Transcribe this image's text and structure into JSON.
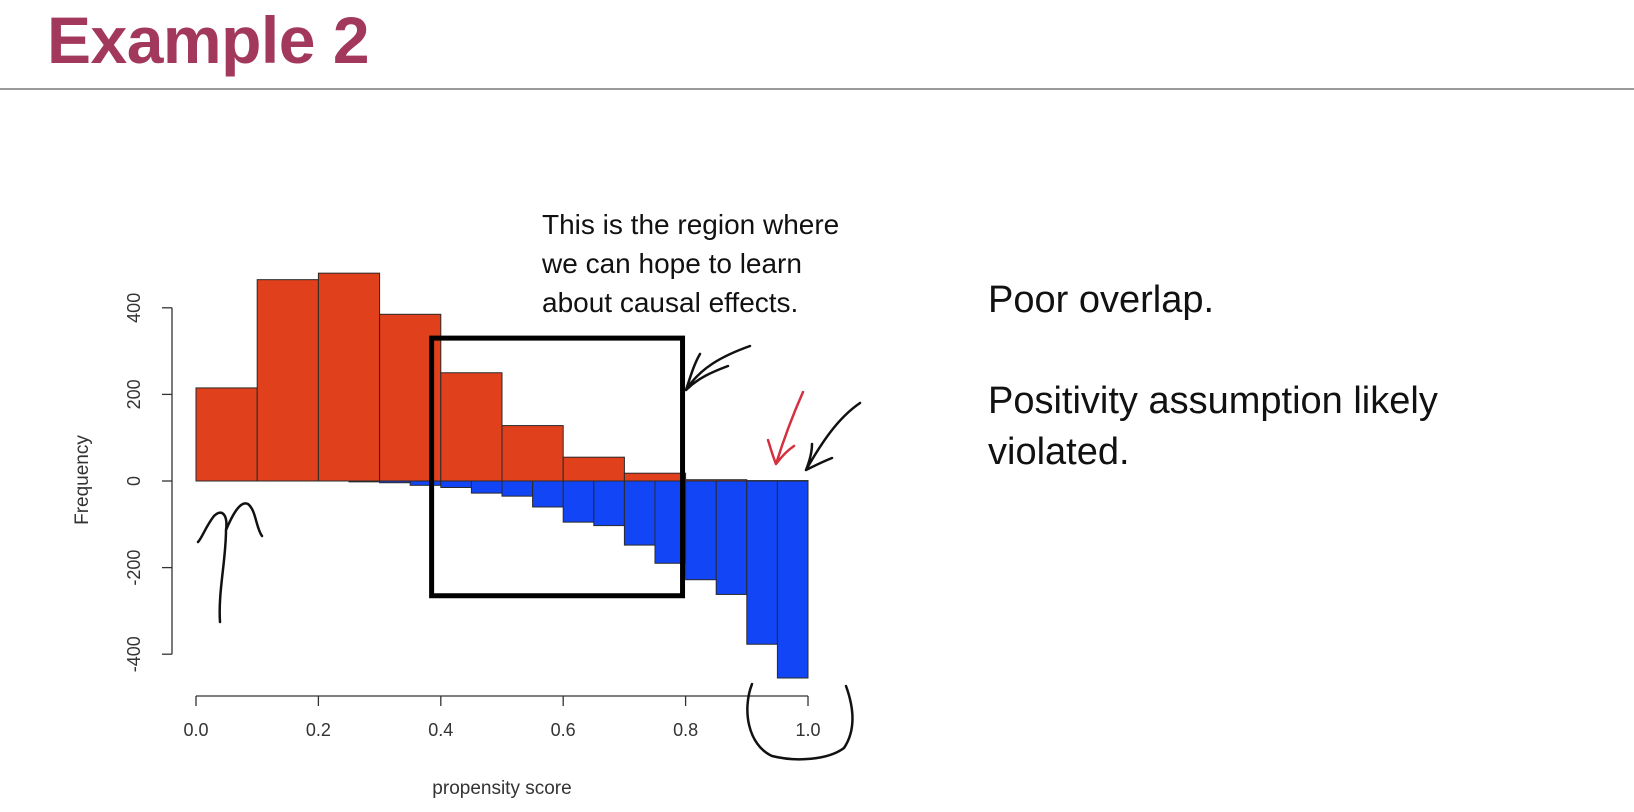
{
  "slide": {
    "title": "Example 2",
    "bullets": [
      "Poor overlap.",
      "Positivity assumption likely violated."
    ]
  },
  "chart_data": {
    "type": "bar",
    "title": "",
    "xlabel": "propensity score",
    "ylabel": "Frequency",
    "xlim": [
      0.0,
      1.0
    ],
    "ylim": [
      -400,
      400
    ],
    "x_ticks": [
      0.0,
      0.2,
      0.4,
      0.6,
      0.8,
      1.0
    ],
    "x_tick_labels": [
      "0.0",
      "0.2",
      "0.4",
      "0.6",
      "0.8",
      "1.0"
    ],
    "y_ticks": [
      -400,
      -200,
      0,
      200,
      400
    ],
    "y_tick_labels": [
      "-400",
      "-200",
      "0",
      "200",
      "400"
    ],
    "bin_width": 0.1,
    "upper_bins": [
      {
        "x0": 0.0,
        "x1": 0.1,
        "value": 215
      },
      {
        "x0": 0.1,
        "x1": 0.2,
        "value": 465
      },
      {
        "x0": 0.2,
        "x1": 0.3,
        "value": 480
      },
      {
        "x0": 0.3,
        "x1": 0.4,
        "value": 385
      },
      {
        "x0": 0.4,
        "x1": 0.5,
        "value": 250
      },
      {
        "x0": 0.5,
        "x1": 0.6,
        "value": 128
      },
      {
        "x0": 0.6,
        "x1": 0.7,
        "value": 55
      },
      {
        "x0": 0.7,
        "x1": 0.8,
        "value": 18
      },
      {
        "x0": 0.8,
        "x1": 0.9,
        "value": 3
      },
      {
        "x0": 0.9,
        "x1": 1.0,
        "value": 1
      }
    ],
    "lower_bin_width": 0.05,
    "lower_bins": [
      {
        "x0": 0.25,
        "x1": 0.3,
        "value": -2
      },
      {
        "x0": 0.3,
        "x1": 0.35,
        "value": -4
      },
      {
        "x0": 0.35,
        "x1": 0.4,
        "value": -10
      },
      {
        "x0": 0.4,
        "x1": 0.45,
        "value": -15
      },
      {
        "x0": 0.45,
        "x1": 0.5,
        "value": -28
      },
      {
        "x0": 0.5,
        "x1": 0.55,
        "value": -35
      },
      {
        "x0": 0.55,
        "x1": 0.6,
        "value": -60
      },
      {
        "x0": 0.6,
        "x1": 0.65,
        "value": -95
      },
      {
        "x0": 0.65,
        "x1": 0.7,
        "value": -103
      },
      {
        "x0": 0.7,
        "x1": 0.75,
        "value": -148
      },
      {
        "x0": 0.75,
        "x1": 0.8,
        "value": -190
      },
      {
        "x0": 0.8,
        "x1": 0.85,
        "value": -228
      },
      {
        "x0": 0.85,
        "x1": 0.9,
        "value": -262
      },
      {
        "x0": 0.9,
        "x1": 0.95,
        "value": -377
      },
      {
        "x0": 0.95,
        "x1": 1.0,
        "value": -455
      }
    ],
    "colors": {
      "upper": "#e0401c",
      "lower": "#1245f5",
      "edge": "#2a2a2a"
    },
    "annotation": {
      "text": [
        "This is the region where",
        "we can hope to learn",
        "about causal effects."
      ],
      "box_x": [
        0.385,
        0.795
      ],
      "box_y": [
        -265,
        330
      ]
    }
  }
}
